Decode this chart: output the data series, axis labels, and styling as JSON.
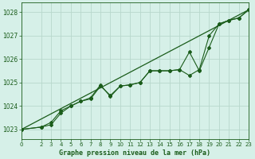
{
  "title": "Graphe pression niveau de la mer (hPa)",
  "bg_color": "#d6f0e8",
  "grid_color": "#b8d8cc",
  "line_color": "#1a5c1a",
  "xlim": [
    0,
    23
  ],
  "ylim": [
    1022.6,
    1028.4
  ],
  "yticks": [
    1023,
    1024,
    1025,
    1026,
    1027,
    1028
  ],
  "xticks": [
    0,
    2,
    3,
    4,
    5,
    6,
    7,
    8,
    9,
    10,
    11,
    12,
    13,
    14,
    15,
    16,
    17,
    18,
    19,
    20,
    21,
    22,
    23
  ],
  "trend_x": [
    0,
    23
  ],
  "trend_y": [
    1023.0,
    1028.1
  ],
  "series1_x": [
    0,
    2,
    3,
    4,
    5,
    6,
    7,
    8,
    9,
    10,
    11,
    12,
    13,
    14,
    15,
    16,
    17,
    18,
    19,
    20,
    21,
    22,
    23
  ],
  "series1_y": [
    1023.0,
    1023.1,
    1023.3,
    1023.8,
    1024.0,
    1024.2,
    1024.3,
    1024.85,
    1024.45,
    1024.85,
    1024.9,
    1025.0,
    1025.5,
    1025.5,
    1025.5,
    1025.55,
    1025.3,
    1025.55,
    1027.0,
    1027.5,
    1027.65,
    1027.75,
    1028.1
  ],
  "series2_x": [
    0,
    2,
    3,
    4,
    5,
    6,
    7,
    8,
    9,
    10,
    11,
    12,
    13,
    14,
    15,
    16,
    17,
    18,
    19,
    20,
    21,
    22,
    23
  ],
  "series2_y": [
    1023.0,
    1023.1,
    1023.2,
    1023.7,
    1024.0,
    1024.2,
    1024.35,
    1024.9,
    1024.4,
    1024.85,
    1024.9,
    1025.0,
    1025.5,
    1025.5,
    1025.5,
    1025.55,
    1026.3,
    1025.5,
    1026.5,
    1027.5,
    1027.65,
    1027.75,
    1028.1
  ]
}
